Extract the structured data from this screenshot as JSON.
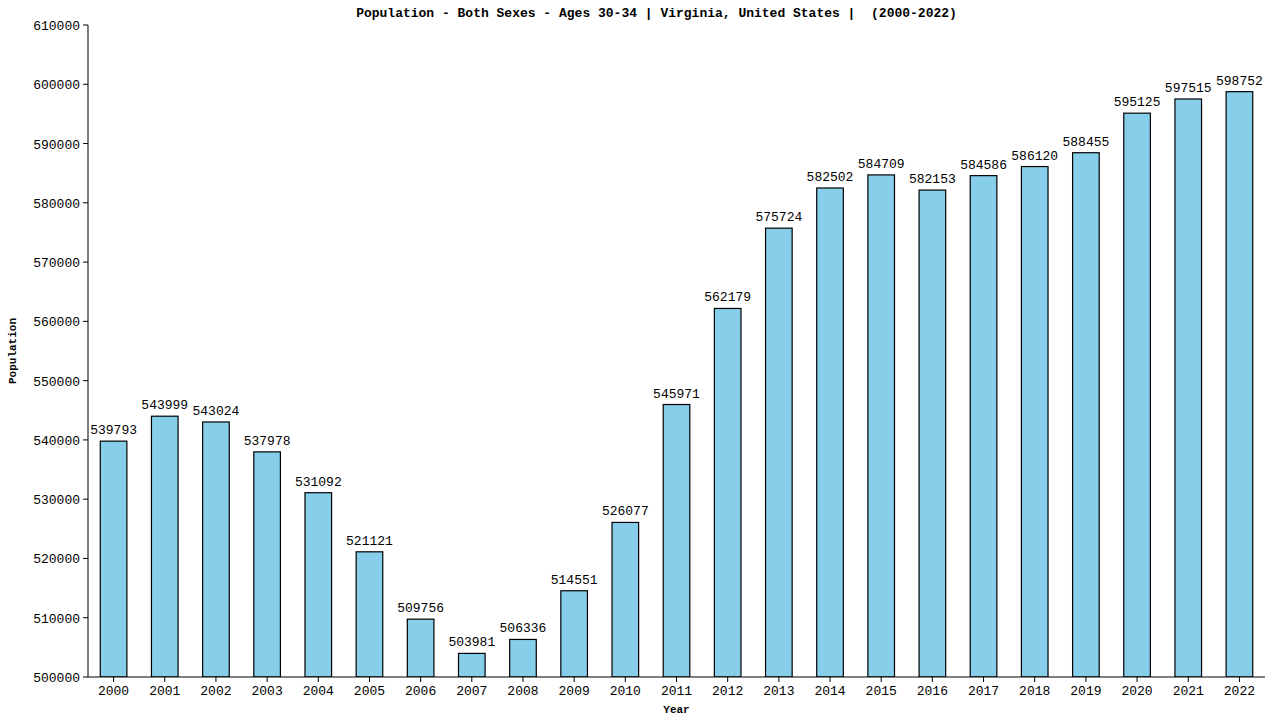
{
  "chart_data": {
    "type": "bar",
    "title": "Population - Both Sexes - Ages 30-34 | Virginia, United States |  (2000-2022)",
    "x_label": "Year",
    "y_label": "Population",
    "categories": [
      "2000",
      "2001",
      "2002",
      "2003",
      "2004",
      "2005",
      "2006",
      "2007",
      "2008",
      "2009",
      "2010",
      "2011",
      "2012",
      "2013",
      "2014",
      "2015",
      "2016",
      "2017",
      "2018",
      "2019",
      "2020",
      "2021",
      "2022"
    ],
    "values": [
      539793,
      543999,
      543024,
      537978,
      531092,
      521121,
      509756,
      503981,
      506336,
      514551,
      526077,
      545971,
      562179,
      575724,
      582502,
      584709,
      582153,
      584586,
      586120,
      588455,
      595125,
      597515,
      598752
    ],
    "color": "#87ceeb",
    "ylim": [
      500000,
      610000
    ],
    "yticks": [
      500000,
      510000,
      520000,
      530000,
      540000,
      550000,
      560000,
      570000,
      580000,
      590000,
      600000,
      610000
    ],
    "grid": false,
    "data_labels": true
  }
}
